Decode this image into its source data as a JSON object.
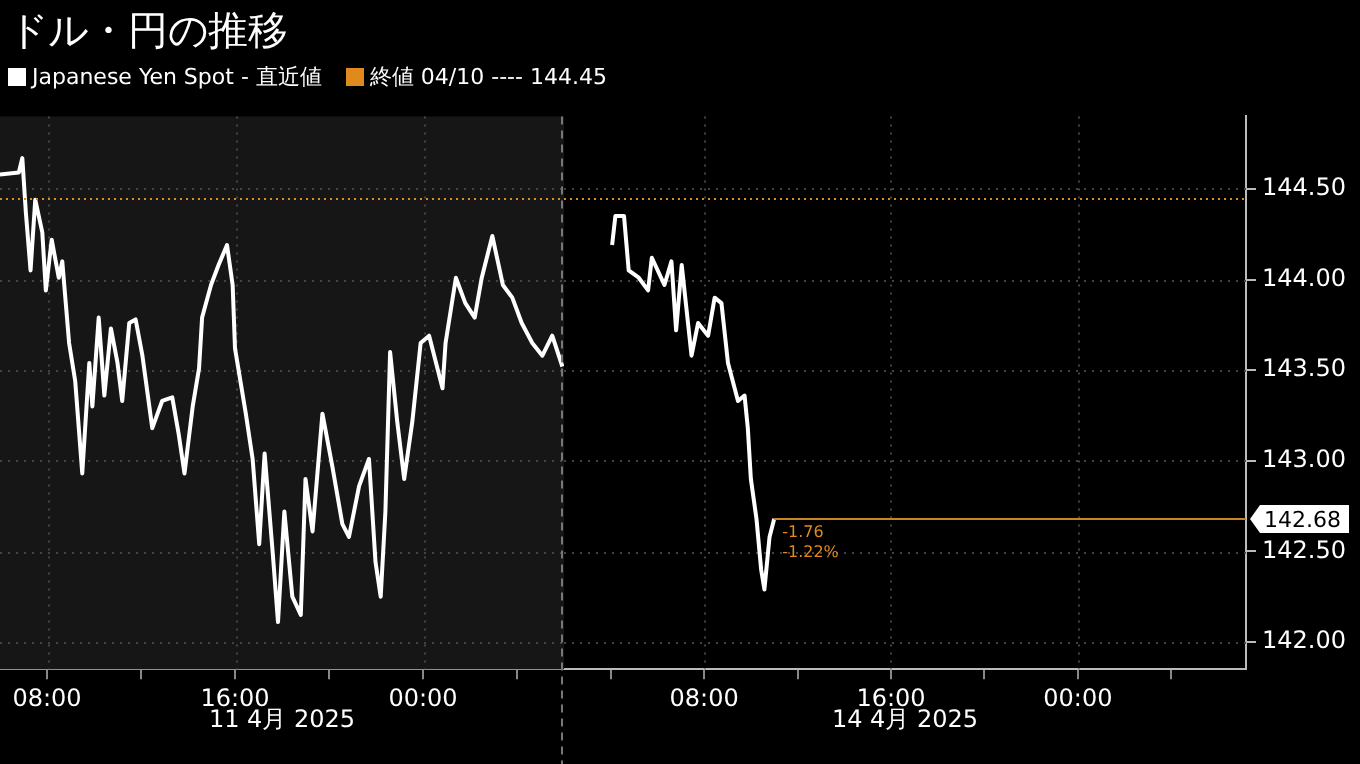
{
  "chart_data": [
    {
      "type": "line",
      "title": "ドル・円の推移",
      "legend": "top left",
      "grid": true,
      "marker": "none",
      "line_style": "solid",
      "tick_labels": "x",
      "xlim": [
        6,
        30
      ],
      "ylim": [
        141.85,
        144.9
      ],
      "xticks": [
        {
          "value": 8,
          "label": "08:00"
        },
        {
          "value": 12,
          "label": null
        },
        {
          "value": 16,
          "label": "16:00"
        },
        {
          "value": 20,
          "label": null
        },
        {
          "value": 24,
          "label": "00:00"
        },
        {
          "value": 28,
          "label": null
        }
      ],
      "yticks": [
        {
          "value": 142,
          "label": null
        },
        {
          "value": 142.5,
          "label": null
        },
        {
          "value": 143,
          "label": null
        },
        {
          "value": 143.5,
          "label": null
        },
        {
          "value": 144,
          "label": null
        },
        {
          "value": 144.5,
          "label": null
        }
      ],
      "series": [
        {
          "name": "Japanese Yen Spot - 直近値",
          "color": "#ffffff",
          "x": [
            6,
            6.8,
            6.95,
            7.1,
            7.3,
            7.5,
            7.8,
            7.95,
            8.2,
            8.5,
            8.65,
            8.94,
            9.2,
            9.5,
            9.8,
            9.93,
            10.2,
            10.44,
            10.72,
            11,
            11.2,
            11.5,
            11.77,
            12.06,
            12.48,
            12.9,
            13.33,
            13.6,
            13.85,
            14.2,
            14.47,
            14.6,
            14.98,
            15.3,
            15.66,
            15.9,
            16,
            16.46,
            16.75,
            17.03,
            17.26,
            17.6,
            17.83,
            18.1,
            18.44,
            18.8,
            19,
            19.3,
            19.72,
            20.14,
            20.57,
            20.85,
            21.28,
            21.7,
            21.98,
            22.2,
            22.4,
            22.6,
            22.9,
            23.2,
            23.55,
            23.9,
            24.26,
            24.83,
            24.96,
            25.4,
            25.8,
            26.2,
            26.5,
            26.95,
            27.4,
            27.8,
            28.2,
            28.65,
            29.08,
            29.5,
            29.93
          ],
          "values": [
            144.58,
            144.59,
            144.67,
            144.37,
            144.05,
            144.44,
            144.26,
            143.94,
            144.22,
            144.01,
            144.1,
            143.65,
            143.44,
            142.93,
            143.54,
            143.3,
            143.79,
            143.36,
            143.73,
            143.54,
            143.33,
            143.76,
            143.78,
            143.58,
            143.18,
            143.33,
            143.35,
            143.15,
            142.93,
            143.3,
            143.51,
            143.79,
            143.97,
            144.08,
            144.19,
            143.97,
            143.62,
            143.26,
            143.01,
            142.54,
            143.04,
            142.5,
            142.11,
            142.72,
            142.25,
            142.15,
            142.9,
            142.61,
            143.26,
            142.97,
            142.65,
            142.58,
            142.86,
            143.01,
            142.44,
            142.25,
            142.72,
            143.6,
            143.22,
            142.9,
            143.22,
            143.65,
            143.69,
            143.4,
            143.65,
            144.01,
            143.87,
            143.79,
            144.01,
            144.24,
            143.97,
            143.9,
            143.76,
            143.65,
            143.58,
            143.69,
            143.52
          ]
        }
      ],
      "ref_lines": [
        {
          "axis": "y",
          "value": 144.45,
          "label": "終値 04/10 ---- 144.45",
          "color": "#e08a1e",
          "line_style": "dotted"
        },
        {
          "axis": "x",
          "value": 30,
          "color": "#777777",
          "line_style": "dashed"
        }
      ],
      "bands": [
        {
          "axis": "x",
          "from": 6,
          "to": 30,
          "color": "#161616"
        }
      ],
      "annotations": [
        "11 4月 2025"
      ]
    },
    {
      "type": "line",
      "grid": true,
      "marker": "none",
      "line_style": "solid",
      "xlim": [
        2,
        31.2
      ],
      "ylim": [
        141.85,
        144.9
      ],
      "xticks": [
        {
          "value": 4,
          "label": null
        },
        {
          "value": 8,
          "label": "08:00"
        },
        {
          "value": 12,
          "label": null
        },
        {
          "value": 16,
          "label": "16:00"
        },
        {
          "value": 20,
          "label": null
        },
        {
          "value": 24,
          "label": "00:00"
        },
        {
          "value": 28,
          "label": null
        }
      ],
      "yticks": [
        {
          "value": 142,
          "label": "142.00"
        },
        {
          "value": 142.5,
          "label": "142.50"
        },
        {
          "value": 143,
          "label": "143.00"
        },
        {
          "value": 143.5,
          "label": "143.50"
        },
        {
          "value": 144,
          "label": "144.00"
        },
        {
          "value": 144.5,
          "label": "144.50"
        }
      ],
      "series": [
        {
          "color": "#ffffff",
          "x": [
            4.06,
            4.2,
            4.57,
            4.77,
            5.2,
            5.6,
            5.76,
            6.3,
            6.6,
            6.8,
            7.04,
            7.46,
            7.74,
            8.17,
            8.45,
            8.74,
            9.02,
            9.45,
            9.73,
            9.87,
            10,
            10.24,
            10.44,
            10.58,
            10.8,
            11
          ],
          "values": [
            144.19,
            144.35,
            144.35,
            144.05,
            144.01,
            143.94,
            144.12,
            143.97,
            144.1,
            143.72,
            144.08,
            143.58,
            143.76,
            143.69,
            143.9,
            143.87,
            143.54,
            143.33,
            143.36,
            143.18,
            142.9,
            142.68,
            142.4,
            142.29,
            142.58,
            142.68
          ]
        }
      ],
      "ref_lines": [
        {
          "axis": "y",
          "value": 144.45,
          "color": "#e08a1e",
          "line_style": "dotted"
        },
        {
          "axis": "y",
          "value": 142.68,
          "label": "142.68",
          "color": "#c98424",
          "line_style": "solid"
        }
      ],
      "annotations": [
        "14 4月 2025",
        "-1.76",
        "-1.22%"
      ]
    }
  ]
}
